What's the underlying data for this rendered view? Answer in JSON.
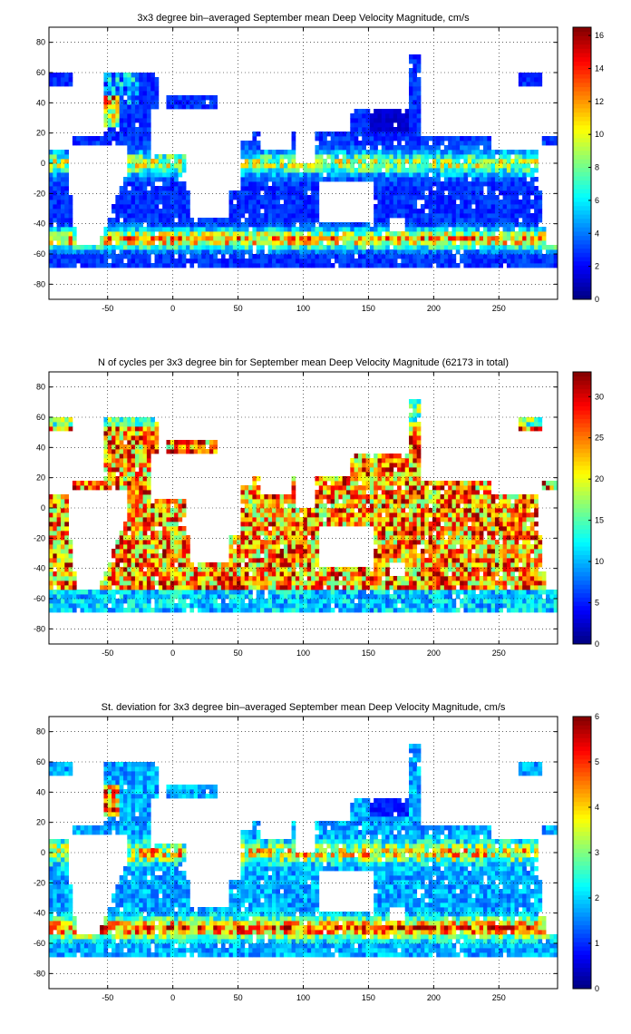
{
  "chart_data": [
    {
      "type": "heatmap",
      "title": "3x3 degree bin–averaged September mean Deep Velocity Magnitude, cm/s",
      "xlim": [
        -95,
        295
      ],
      "ylim": [
        -90,
        90
      ],
      "xticks": [
        -50,
        0,
        50,
        100,
        150,
        200,
        250
      ],
      "yticks": [
        80,
        60,
        40,
        20,
        0,
        -20,
        -40,
        -60,
        -80
      ],
      "grid": true,
      "colorbar": {
        "min": 0,
        "max": 16.5,
        "ticks": [
          0,
          2,
          4,
          6,
          8,
          10,
          12,
          14,
          16
        ],
        "colormap": "jet"
      },
      "bin_size_deg": 3,
      "field_summary": "Low speeds (0–4) over most ocean interiors; bands of 6–12 along the equator and western boundaries; highest speeds (12–16) in the Southern Ocean near 50°S"
    },
    {
      "type": "heatmap",
      "title": "N of cycles per 3x3 degree bin for September mean Deep Velocity Magnitude (62173 in total)",
      "xlim": [
        -95,
        295
      ],
      "ylim": [
        -90,
        90
      ],
      "xticks": [
        -50,
        0,
        50,
        100,
        150,
        200,
        250
      ],
      "yticks": [
        80,
        60,
        40,
        20,
        0,
        -20,
        -40,
        -60,
        -80
      ],
      "grid": true,
      "colorbar": {
        "min": 0,
        "max": 33,
        "ticks": [
          0,
          5,
          10,
          15,
          20,
          25,
          30
        ],
        "colormap": "jet"
      },
      "bin_size_deg": 3,
      "total": 62173,
      "field_summary": "Most open-ocean bins hold 15–33 cycles; fewer (under 10) near coasts, high latitudes and the Southern Ocean edge"
    },
    {
      "type": "heatmap",
      "title": "St. deviation for 3x3 degree bin–averaged September mean Deep Velocity Magnitude, cm/s",
      "xlim": [
        -95,
        295
      ],
      "ylim": [
        -90,
        90
      ],
      "xticks": [
        -50,
        0,
        50,
        100,
        150,
        200,
        250
      ],
      "yticks": [
        80,
        60,
        40,
        20,
        0,
        -20,
        -40,
        -60,
        -80
      ],
      "grid": true,
      "colorbar": {
        "min": 0,
        "max": 6,
        "ticks": [
          0,
          1,
          2,
          3,
          4,
          5,
          6
        ],
        "colormap": "jet"
      },
      "bin_size_deg": 3,
      "field_summary": "Standard deviation mostly 1–3 cm/s; 5–6 in the Southern Ocean, Gulf Stream and equatorial bands"
    }
  ]
}
